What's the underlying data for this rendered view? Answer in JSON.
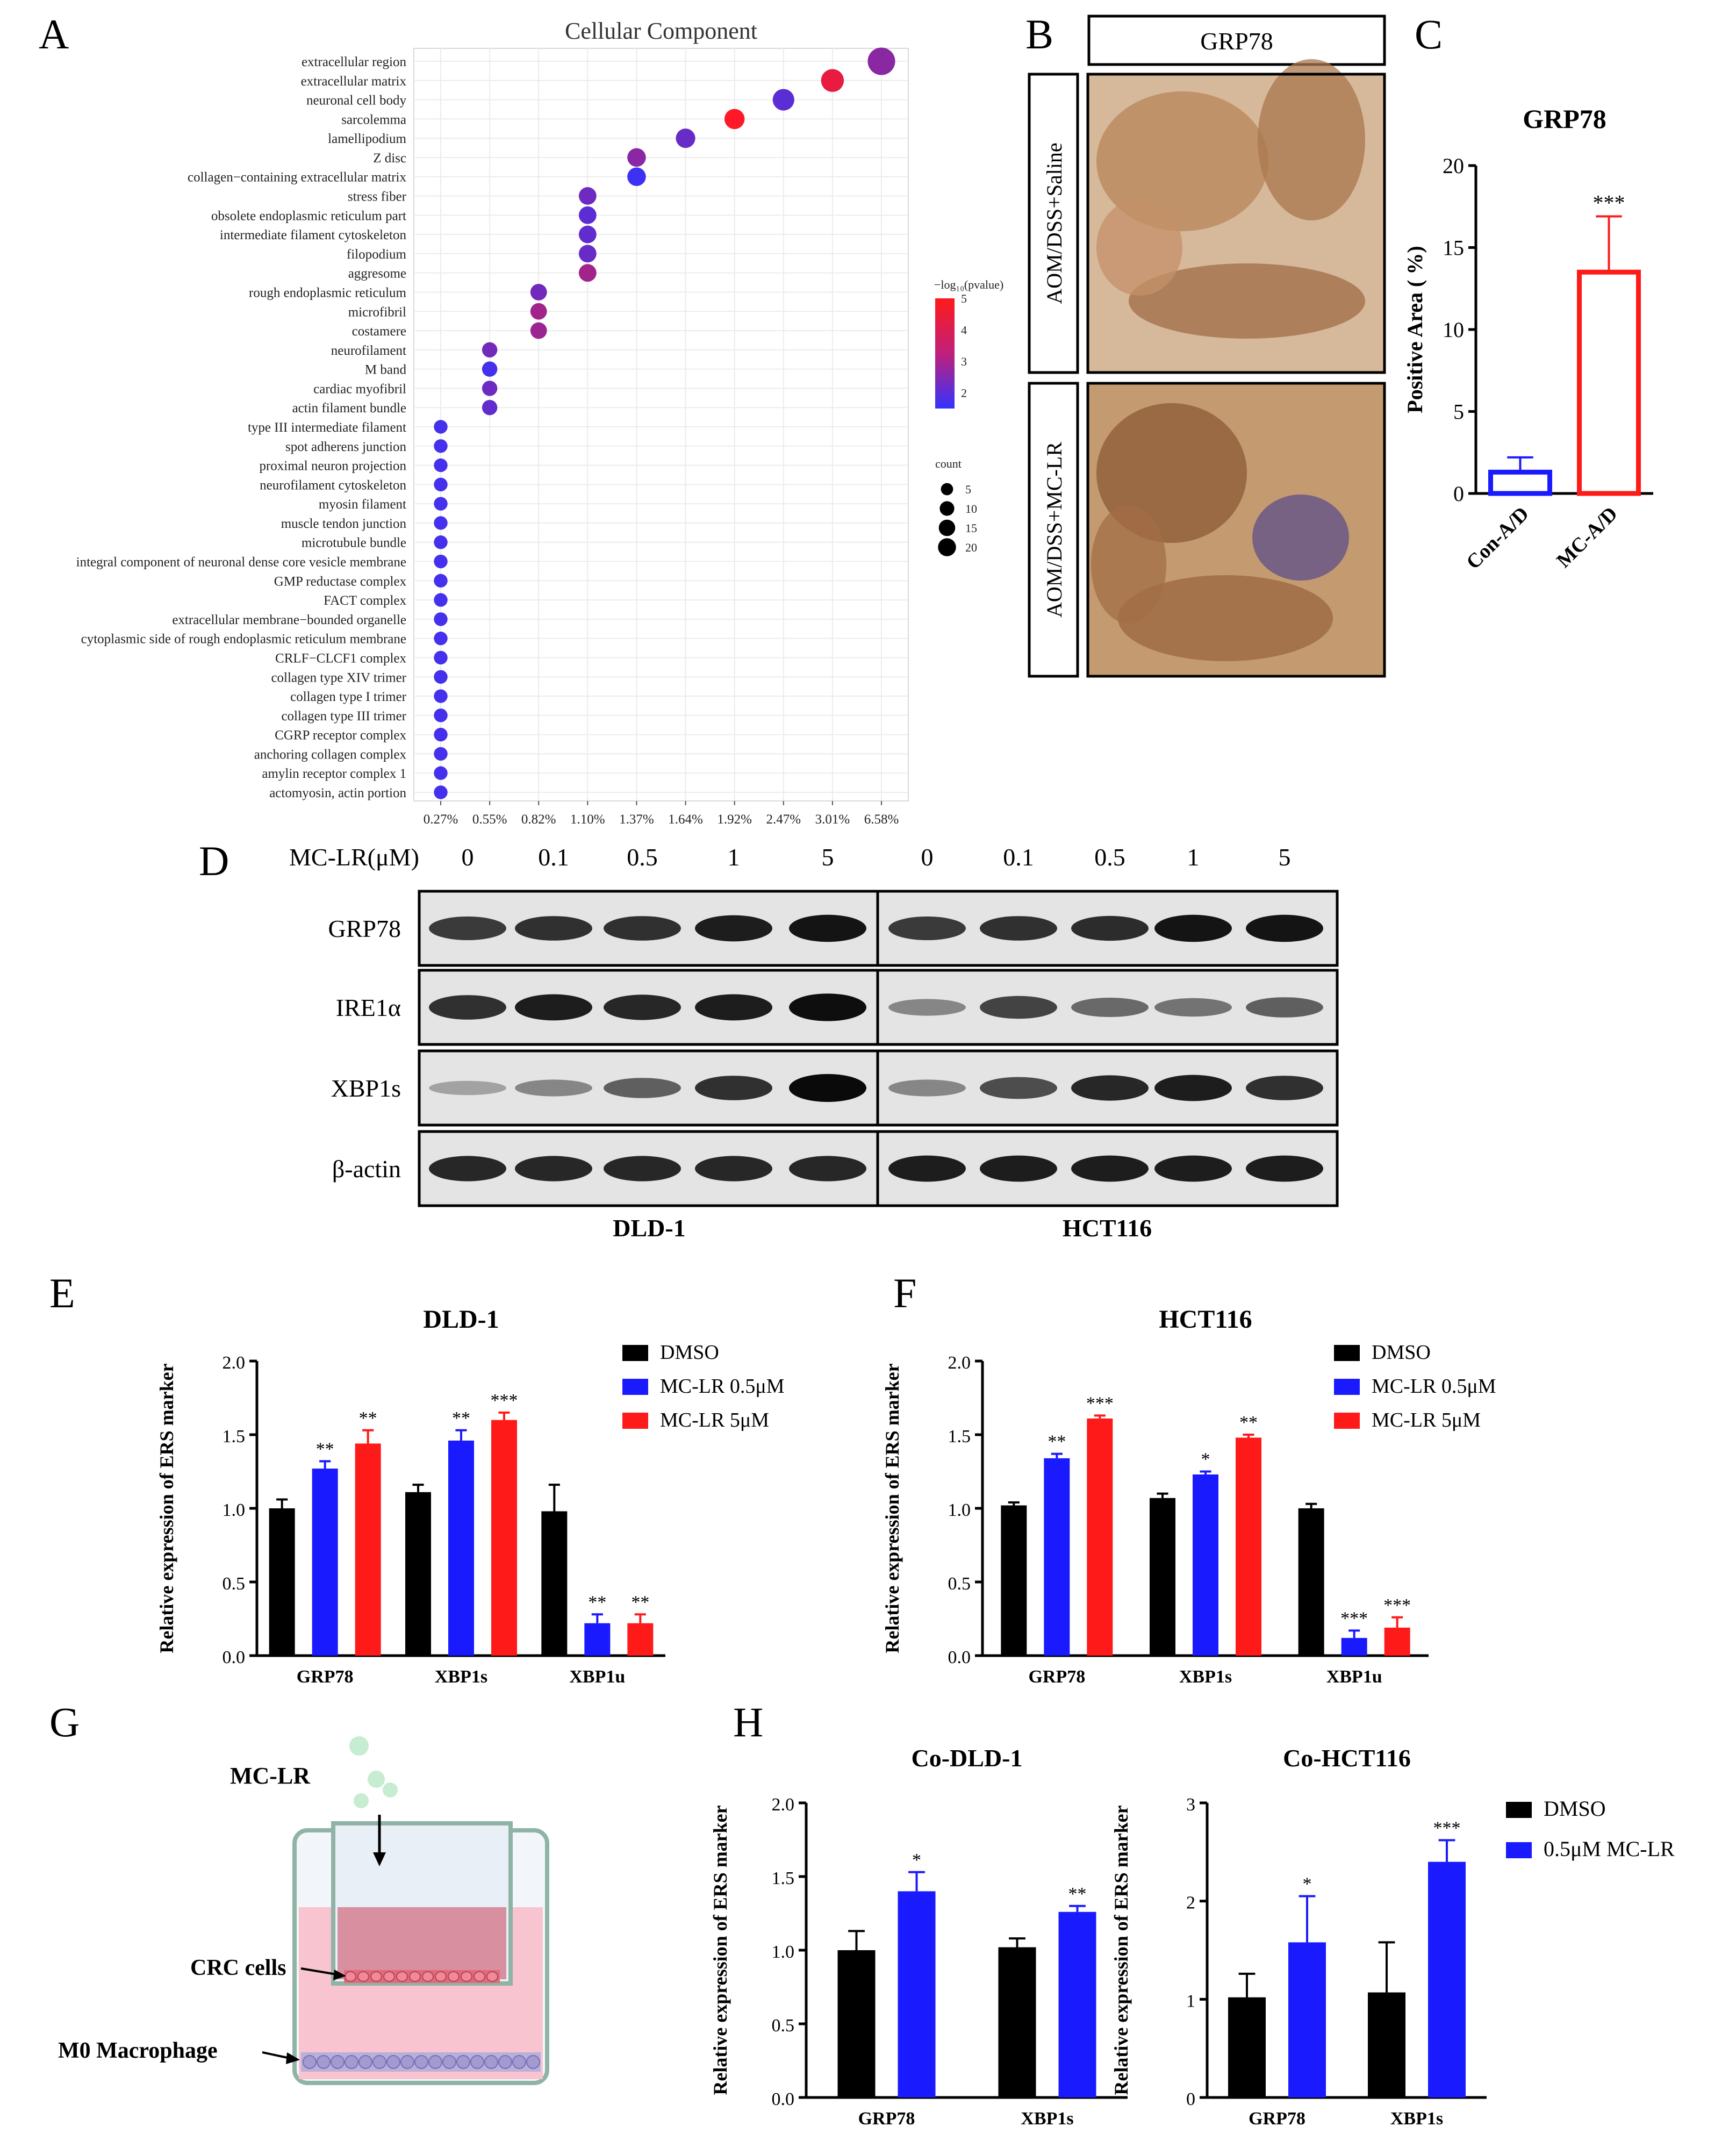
{
  "panels": {
    "A": "A",
    "B": "B",
    "C": "C",
    "D": "D",
    "E": "E",
    "F": "F",
    "G": "G",
    "H": "H"
  },
  "colors": {
    "black": "#000000",
    "blue": "#1a1aff",
    "red": "#ff1a1a",
    "dot_high": "#ff1a1a",
    "dot_low": "#3333ff"
  },
  "chart_data": [
    {
      "id": "A",
      "type": "scatter",
      "title": "Cellular Component",
      "xlabel": "",
      "ylabel": "",
      "x_tick_labels": [
        "0.27%",
        "0.55%",
        "0.82%",
        "1.10%",
        "1.37%",
        "1.64%",
        "1.92%",
        "2.47%",
        "3.01%",
        "6.58%"
      ],
      "terms": [
        {
          "term": "extracellular region",
          "x": 9,
          "count": 20,
          "logp": 3.0
        },
        {
          "term": "extracellular matrix",
          "x": 8,
          "count": 11,
          "logp": 4.6
        },
        {
          "term": "neuronal cell body",
          "x": 7,
          "count": 9,
          "logp": 2.2
        },
        {
          "term": "sarcolemma",
          "x": 6,
          "count": 7,
          "logp": 5.0
        },
        {
          "term": "lamellipodium",
          "x": 5,
          "count": 6,
          "logp": 2.4
        },
        {
          "term": "Z disc",
          "x": 4,
          "count": 5,
          "logp": 3.0
        },
        {
          "term": "collagen−containing extracellular matrix",
          "x": 4,
          "count": 5,
          "logp": 1.7
        },
        {
          "term": "stress fiber",
          "x": 3,
          "count": 4,
          "logp": 2.5
        },
        {
          "term": "obsolete endoplasmic reticulum part",
          "x": 3,
          "count": 4,
          "logp": 2.2
        },
        {
          "term": "intermediate filament cytoskeleton",
          "x": 3,
          "count": 4,
          "logp": 2.3
        },
        {
          "term": "filopodium",
          "x": 3,
          "count": 4,
          "logp": 2.4
        },
        {
          "term": "aggresome",
          "x": 3,
          "count": 4,
          "logp": 3.4
        },
        {
          "term": "rough endoplasmic reticulum",
          "x": 2,
          "count": 3,
          "logp": 2.6
        },
        {
          "term": "microfibril",
          "x": 2,
          "count": 3,
          "logp": 3.4
        },
        {
          "term": "costamere",
          "x": 2,
          "count": 3,
          "logp": 3.3
        },
        {
          "term": "neurofilament",
          "x": 1,
          "count": 2,
          "logp": 2.6
        },
        {
          "term": "M band",
          "x": 1,
          "count": 2,
          "logp": 1.8
        },
        {
          "term": "cardiac myofibril",
          "x": 1,
          "count": 2,
          "logp": 2.5
        },
        {
          "term": "actin filament bundle",
          "x": 1,
          "count": 2,
          "logp": 2.3
        },
        {
          "term": "type III intermediate filament",
          "x": 0,
          "count": 1,
          "logp": 1.8
        },
        {
          "term": "spot adherens junction",
          "x": 0,
          "count": 1,
          "logp": 1.8
        },
        {
          "term": "proximal neuron projection",
          "x": 0,
          "count": 1,
          "logp": 1.8
        },
        {
          "term": "neurofilament cytoskeleton",
          "x": 0,
          "count": 1,
          "logp": 1.8
        },
        {
          "term": "myosin filament",
          "x": 0,
          "count": 1,
          "logp": 1.8
        },
        {
          "term": "muscle tendon junction",
          "x": 0,
          "count": 1,
          "logp": 1.8
        },
        {
          "term": "microtubule bundle",
          "x": 0,
          "count": 1,
          "logp": 1.8
        },
        {
          "term": "integral component of neuronal dense core vesicle membrane",
          "x": 0,
          "count": 1,
          "logp": 1.8
        },
        {
          "term": "GMP reductase complex",
          "x": 0,
          "count": 1,
          "logp": 1.8
        },
        {
          "term": "FACT complex",
          "x": 0,
          "count": 1,
          "logp": 1.8
        },
        {
          "term": "extracellular membrane−bounded organelle",
          "x": 0,
          "count": 1,
          "logp": 1.8
        },
        {
          "term": "cytoplasmic side of rough endoplasmic reticulum membrane",
          "x": 0,
          "count": 1,
          "logp": 1.8
        },
        {
          "term": "CRLF−CLCF1 complex",
          "x": 0,
          "count": 1,
          "logp": 1.8
        },
        {
          "term": "collagen type XIV trimer",
          "x": 0,
          "count": 1,
          "logp": 1.8
        },
        {
          "term": "collagen type I trimer",
          "x": 0,
          "count": 1,
          "logp": 1.8
        },
        {
          "term": "collagen type III trimer",
          "x": 0,
          "count": 1,
          "logp": 1.8
        },
        {
          "term": "CGRP receptor complex",
          "x": 0,
          "count": 1,
          "logp": 1.8
        },
        {
          "term": "anchoring collagen complex",
          "x": 0,
          "count": 1,
          "logp": 1.8
        },
        {
          "term": "amylin receptor complex 1",
          "x": 0,
          "count": 1,
          "logp": 1.8
        },
        {
          "term": "actomyosin, actin portion",
          "x": 0,
          "count": 1,
          "logp": 1.8
        }
      ],
      "colorbar": {
        "title": "−log₁₀(pvalue)",
        "ticks": [
          "5",
          "4",
          "3",
          "2"
        ],
        "range": [
          1.5,
          5
        ]
      },
      "size_legend": {
        "title": "count",
        "ticks": [
          "5",
          "10",
          "15",
          "20"
        ]
      }
    },
    {
      "id": "B",
      "type": "image",
      "header": "GRP78",
      "rows": [
        "AOM/DSS+Saline",
        "AOM/DSS+MC-LR"
      ]
    },
    {
      "id": "C",
      "type": "bar",
      "title": "GRP78",
      "ylabel": "Positive Area ( %)",
      "categories": [
        "Con-A/D",
        "MC-A/D"
      ],
      "values": [
        1.3,
        13.5
      ],
      "errors": [
        0.9,
        3.4
      ],
      "colors": [
        "#1a1aff",
        "#ff1a1a"
      ],
      "sig": [
        "",
        "***"
      ],
      "ylim": [
        0,
        20
      ],
      "yticks": [
        "0",
        "5",
        "10",
        "15",
        "20"
      ]
    },
    {
      "id": "E",
      "type": "bar",
      "title": "DLD-1",
      "ylabel": "Relative expression of ERS marker",
      "categories": [
        "GRP78",
        "XBP1s",
        "XBP1u"
      ],
      "series": [
        {
          "name": "DMSO",
          "values": [
            1.0,
            1.11,
            0.98
          ],
          "errors": [
            0.06,
            0.05,
            0.18
          ],
          "sig": [
            "",
            "",
            ""
          ]
        },
        {
          "name": "MC-LR 0.5μM",
          "values": [
            1.27,
            1.46,
            0.22
          ],
          "errors": [
            0.05,
            0.07,
            0.06
          ],
          "sig": [
            "**",
            "**",
            "**"
          ]
        },
        {
          "name": "MC-LR 5μM",
          "values": [
            1.44,
            1.6,
            0.22
          ],
          "errors": [
            0.09,
            0.05,
            0.06
          ],
          "sig": [
            "**",
            "***",
            "**"
          ]
        }
      ],
      "ylim": [
        0,
        2
      ],
      "yticks": [
        "0.0",
        "0.5",
        "1.0",
        "1.5",
        "2.0"
      ]
    },
    {
      "id": "F",
      "type": "bar",
      "title": "HCT116",
      "ylabel": "Relative expression of ERS marker",
      "categories": [
        "GRP78",
        "XBP1s",
        "XBP1u"
      ],
      "series": [
        {
          "name": "DMSO",
          "values": [
            1.02,
            1.07,
            1.0
          ],
          "errors": [
            0.02,
            0.03,
            0.03
          ],
          "sig": [
            "",
            "",
            ""
          ]
        },
        {
          "name": "MC-LR 0.5μM",
          "values": [
            1.34,
            1.23,
            0.12
          ],
          "errors": [
            0.03,
            0.02,
            0.05
          ],
          "sig": [
            "**",
            "*",
            "***"
          ]
        },
        {
          "name": "MC-LR 5μM",
          "values": [
            1.61,
            1.48,
            0.19
          ],
          "errors": [
            0.02,
            0.02,
            0.07
          ],
          "sig": [
            "***",
            "**",
            "***"
          ]
        }
      ],
      "ylim": [
        0,
        2
      ],
      "yticks": [
        "0.0",
        "0.5",
        "1.0",
        "1.5",
        "2.0"
      ]
    },
    {
      "id": "H1",
      "type": "bar",
      "title": "Co-DLD-1",
      "ylabel": "Relative expression of ERS marker",
      "categories": [
        "GRP78",
        "XBP1s"
      ],
      "series": [
        {
          "name": "DMSO",
          "values": [
            1.0,
            1.02
          ],
          "errors": [
            0.13,
            0.06
          ],
          "sig": [
            "",
            ""
          ]
        },
        {
          "name": "0.5μM MC-LR",
          "values": [
            1.4,
            1.26
          ],
          "errors": [
            0.13,
            0.04
          ],
          "sig": [
            "*",
            "**"
          ]
        }
      ],
      "ylim": [
        0,
        2
      ],
      "yticks": [
        "0.0",
        "0.5",
        "1.0",
        "1.5",
        "2.0"
      ]
    },
    {
      "id": "H2",
      "type": "bar",
      "title": "Co-HCT116",
      "ylabel": "Relative expression of ERS marker",
      "categories": [
        "GRP78",
        "XBP1s"
      ],
      "series": [
        {
          "name": "DMSO",
          "values": [
            1.02,
            1.07
          ],
          "errors": [
            0.24,
            0.51
          ],
          "sig": [
            "",
            ""
          ]
        },
        {
          "name": "0.5μM MC-LR",
          "values": [
            1.58,
            2.4
          ],
          "errors": [
            0.47,
            0.22
          ],
          "sig": [
            "*",
            "***"
          ]
        }
      ],
      "ylim": [
        0,
        3
      ],
      "yticks": [
        "0",
        "1",
        "2",
        "3"
      ]
    }
  ],
  "western": {
    "treatment_label": "MC-LR(μM)",
    "doses": [
      "0",
      "0.1",
      "0.5",
      "1",
      "5",
      "0",
      "0.1",
      "0.5",
      "1",
      "5"
    ],
    "proteins": [
      "GRP78",
      "IRE1α",
      "XBP1s",
      "β-actin"
    ],
    "cell_lines": [
      "DLD-1",
      "HCT116"
    ],
    "intensity": {
      "DLD-1": [
        [
          0.75,
          0.8,
          0.8,
          0.9,
          0.95
        ],
        [
          0.8,
          0.9,
          0.85,
          0.9,
          0.98
        ],
        [
          0.2,
          0.35,
          0.55,
          0.8,
          1.0
        ],
        [
          0.85,
          0.85,
          0.85,
          0.85,
          0.85
        ]
      ],
      "HCT116": [
        [
          0.75,
          0.8,
          0.82,
          0.95,
          0.95
        ],
        [
          0.35,
          0.7,
          0.5,
          0.45,
          0.55
        ],
        [
          0.35,
          0.65,
          0.85,
          0.9,
          0.8
        ],
        [
          0.9,
          0.9,
          0.9,
          0.9,
          0.9
        ]
      ]
    }
  },
  "schematic": {
    "labels": {
      "mclr": "MC-LR",
      "crc": "CRC cells",
      "m0": "M0 Macrophage"
    }
  }
}
